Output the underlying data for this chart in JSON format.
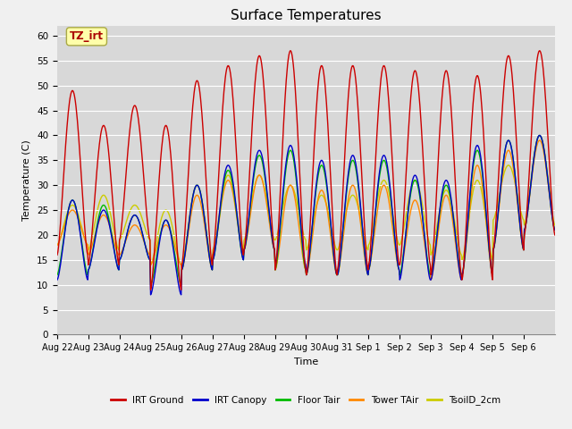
{
  "title": "Surface Temperatures",
  "xlabel": "Time",
  "ylabel": "Temperature (C)",
  "ylim": [
    0,
    62
  ],
  "yticks": [
    0,
    5,
    10,
    15,
    20,
    25,
    30,
    35,
    40,
    45,
    50,
    55,
    60
  ],
  "bg_color": "#d8d8d8",
  "fig_color": "#f0f0f0",
  "legend_entries": [
    "IRT Ground",
    "IRT Canopy",
    "Floor Tair",
    "Tower TAir",
    "TsoilD_2cm"
  ],
  "legend_colors": [
    "#cc0000",
    "#0000cc",
    "#00bb00",
    "#ff8800",
    "#cccc00"
  ],
  "annotation_text": "TZ_irt",
  "annotation_color": "#aa0000",
  "annotation_bg": "#ffffaa",
  "n_days": 16,
  "xtick_labels": [
    "Aug 22",
    "Aug 23",
    "Aug 24",
    "Aug 25",
    "Aug 26",
    "Aug 27",
    "Aug 28",
    "Aug 29",
    "Aug 30",
    "Aug 31",
    "Sep 1",
    "Sep 2",
    "Sep 3",
    "Sep 4",
    "Sep 5",
    "Sep 6"
  ],
  "irt_ground_peaks": [
    49,
    42,
    46,
    42,
    51,
    54,
    56,
    57,
    54,
    54,
    54,
    53,
    53,
    52,
    56,
    57
  ],
  "irt_ground_mins": [
    16,
    14,
    19,
    9,
    14,
    16,
    17,
    13,
    12,
    13,
    14,
    14,
    12,
    11,
    17,
    20
  ],
  "irt_canopy_peaks": [
    27,
    25,
    24,
    23,
    30,
    34,
    37,
    38,
    35,
    36,
    36,
    32,
    31,
    38,
    39,
    40
  ],
  "irt_canopy_mins": [
    11,
    13,
    15,
    8,
    13,
    15,
    17,
    14,
    12,
    12,
    13,
    11,
    11,
    12,
    17,
    21
  ],
  "floor_tair_peaks": [
    27,
    26,
    24,
    23,
    30,
    33,
    36,
    37,
    34,
    35,
    35,
    31,
    30,
    37,
    39,
    40
  ],
  "floor_tair_mins": [
    12,
    13,
    15,
    10,
    13,
    15,
    17,
    13,
    12,
    12,
    13,
    12,
    12,
    12,
    17,
    21
  ],
  "tower_tair_peaks": [
    25,
    24,
    22,
    22,
    28,
    31,
    32,
    30,
    29,
    30,
    30,
    27,
    28,
    34,
    37,
    39
  ],
  "tower_tair_mins": [
    18,
    16,
    16,
    14,
    13,
    16,
    17,
    13,
    12,
    12,
    13,
    12,
    11,
    12,
    17,
    21
  ],
  "tsoild_peaks": [
    26,
    28,
    26,
    25,
    30,
    32,
    32,
    30,
    28,
    28,
    31,
    31,
    29,
    31,
    34,
    40
  ],
  "tsoild_mins": [
    18,
    17,
    19,
    14,
    14,
    17,
    19,
    19,
    17,
    17,
    18,
    18,
    16,
    15,
    23,
    22
  ]
}
